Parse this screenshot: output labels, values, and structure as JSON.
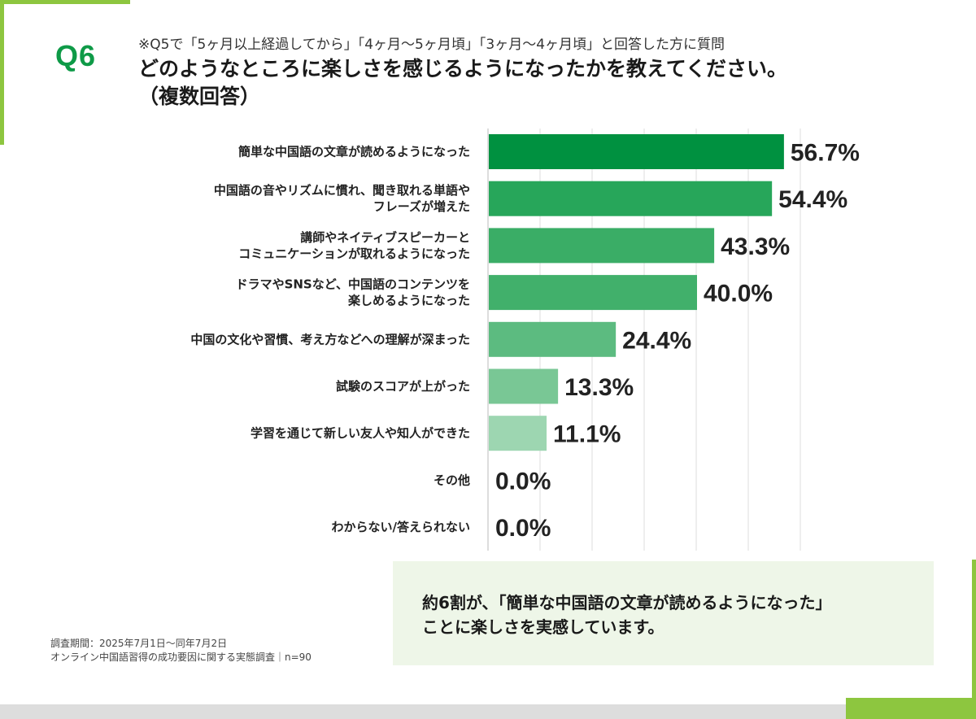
{
  "header": {
    "question_badge": "Q6",
    "note": "※Q5で「5ヶ月以上経過してから」「4ヶ月～5ヶ月頃」「3ヶ月～4ヶ月頃」と回答した方に質問",
    "title_line1": "どのようなところに楽しさを感じるようになったかを教えてください。",
    "title_line2": "（複数回答）"
  },
  "chart_data": {
    "type": "bar",
    "orientation": "horizontal",
    "categories": [
      [
        "簡単な中国語の文章が読めるようになった"
      ],
      [
        "中国語の音やリズムに慣れ、聞き取れる単語や",
        "フレーズが増えた"
      ],
      [
        "講師やネイティブスピーカーと",
        "コミュニケーションが取れるようになった"
      ],
      [
        "ドラマやSNSなど、中国語のコンテンツを",
        "楽しめるようになった"
      ],
      [
        "中国の文化や習慣、考え方などへの理解が深まった"
      ],
      [
        "試験のスコアが上がった"
      ],
      [
        "学習を通じて新しい友人や知人ができた"
      ],
      [
        "その他"
      ],
      [
        "わからない/答えられない"
      ]
    ],
    "values": [
      56.7,
      54.4,
      43.3,
      40.0,
      24.4,
      13.3,
      11.1,
      0.0,
      0.0
    ],
    "value_labels": [
      "56.7%",
      "54.4%",
      "43.3%",
      "40.0%",
      "24.4%",
      "13.3%",
      "11.1%",
      "0.0%",
      "0.0%"
    ],
    "bar_colors": [
      "#009140",
      "#27a65a",
      "#3aad66",
      "#41b06b",
      "#5cbb80",
      "#79c795",
      "#9dd6b1",
      "#c6e7d2",
      "#c6e7d2"
    ],
    "xlim": [
      0,
      60
    ],
    "grid": true,
    "legend": false
  },
  "callout": {
    "line1": "約6割が、「簡単な中国語の文章が読めるようになった」",
    "line2": "ことに楽しさを実感しています。"
  },
  "footnote": {
    "line1": "調査期間：2025年7月1日～同年7月2日",
    "line2": "オンライン中国語習得の成功要因に関する実態調査｜n=90"
  }
}
